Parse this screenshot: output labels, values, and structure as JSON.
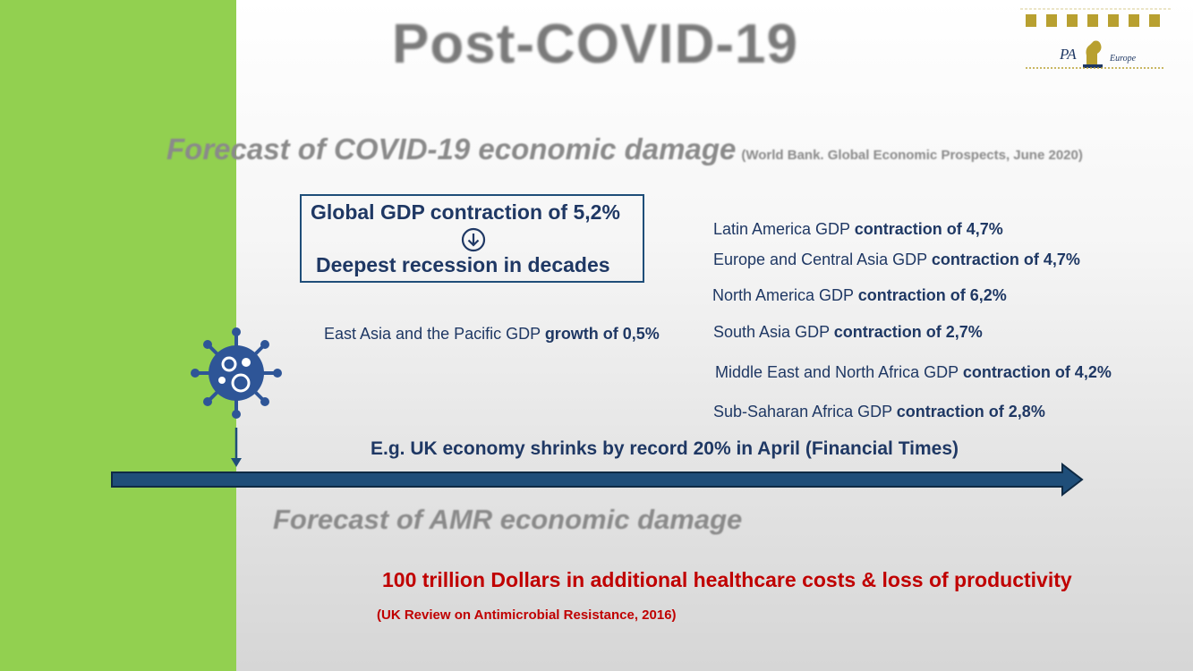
{
  "slide": {
    "title": "Post-COVID-19",
    "covid_forecast": {
      "heading": "Forecast of COVID-19 economic damage",
      "source": "(World Bank. Global Economic Prospects, June 2020)",
      "global_box": {
        "line1": "Global GDP contraction of 5,2%",
        "line2": "Deepest recession in decades"
      },
      "east_asia": {
        "label": "East Asia and the Pacific GDP",
        "value": "growth of 0,5%"
      },
      "regions": [
        {
          "label": "Latin America GDP",
          "value": "contraction of 4,7%"
        },
        {
          "label": "Europe and Central Asia GDP",
          "value": "contraction of 4,7%"
        },
        {
          "label": "North America GDP",
          "value": "contraction of 6,2%"
        },
        {
          "label": "South Asia GDP",
          "value": "contraction of 2,7%"
        },
        {
          "label": "Middle East and North Africa GDP",
          "value": "contraction of 4,2%"
        },
        {
          "label": "Sub-Saharan Africa GDP",
          "value": "contraction of 2,8%"
        }
      ],
      "uk_note": "E.g. UK economy shrinks by record 20% in April (Financial Times)"
    },
    "amr_forecast": {
      "heading": "Forecast of AMR economic damage",
      "cost": "100 trillion Dollars in additional healthcare costs & loss of productivity",
      "source": "(UK Review on Antimicrobial Resistance, 2016)"
    },
    "logo": {
      "letters": "PA",
      "sub": "Europe"
    },
    "colors": {
      "accent_green": "#92d050",
      "navy": "#1f3864",
      "red": "#c00000",
      "logo_gold": "#b8a030"
    },
    "icons": {
      "virus": "virus-icon",
      "arrow": "arrow-down-circle-icon"
    }
  }
}
